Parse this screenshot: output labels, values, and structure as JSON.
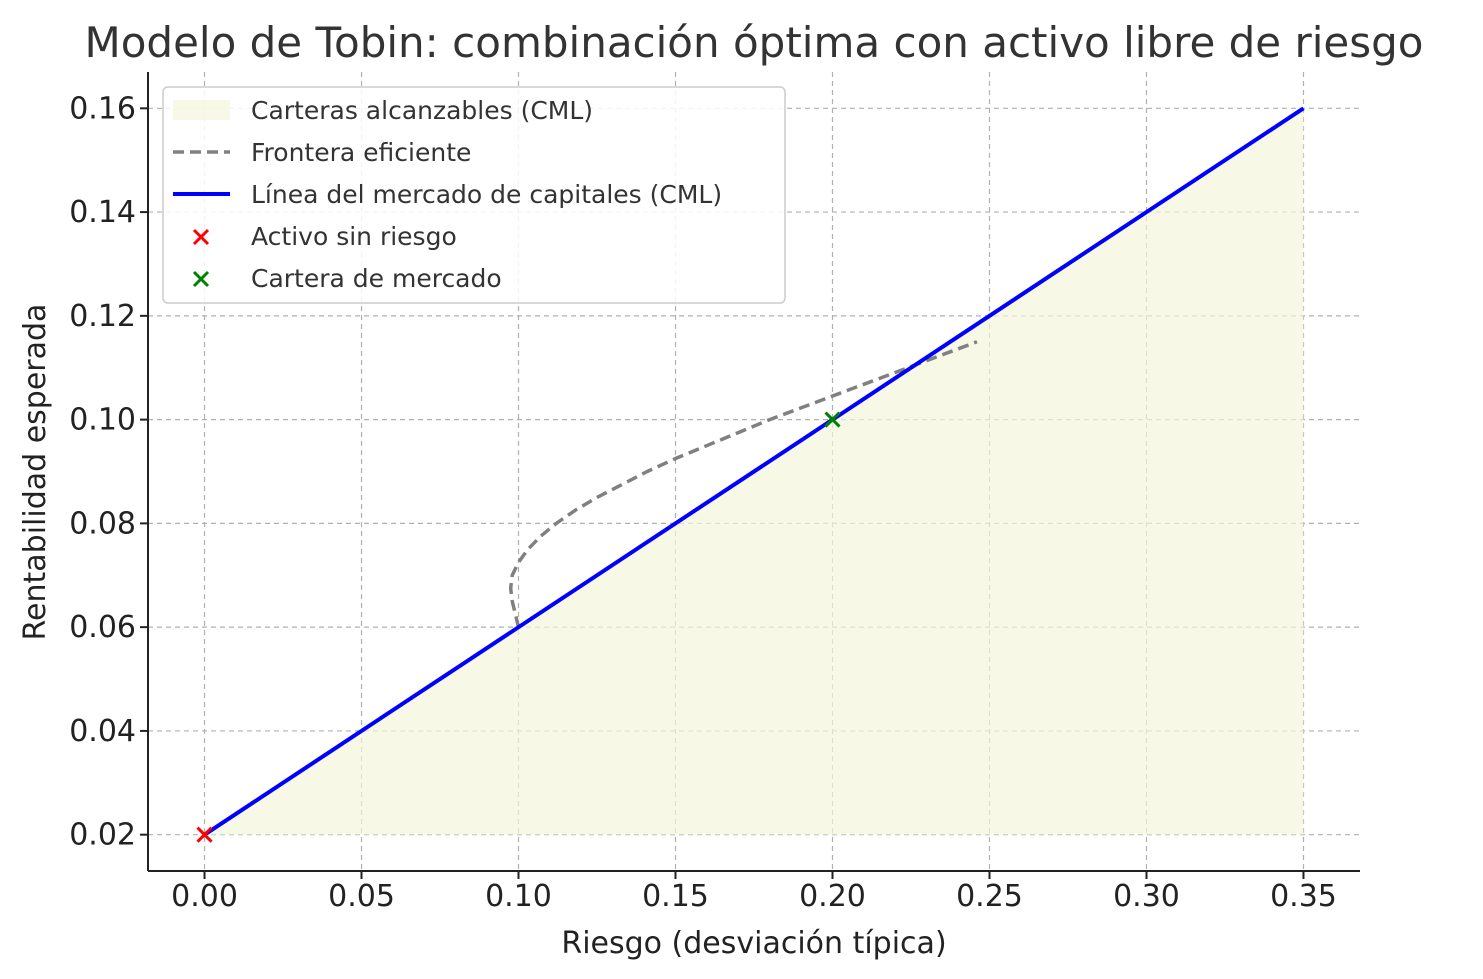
{
  "chart_data": {
    "type": "line",
    "title": "Modelo de Tobin: combinación óptima con activo libre de riesgo",
    "xlabel": "Riesgo (desviación típica)",
    "ylabel": "Rentabilidad esperada",
    "xlim": [
      -0.018,
      0.368
    ],
    "ylim": [
      0.013,
      0.167
    ],
    "xticks": [
      0.0,
      0.05,
      0.1,
      0.15,
      0.2,
      0.25,
      0.3,
      0.35
    ],
    "xtick_labels": [
      "0.00",
      "0.05",
      "0.10",
      "0.15",
      "0.20",
      "0.25",
      "0.30",
      "0.35"
    ],
    "yticks": [
      0.02,
      0.04,
      0.06,
      0.08,
      0.1,
      0.12,
      0.14,
      0.16
    ],
    "ytick_labels": [
      "0.02",
      "0.04",
      "0.06",
      "0.08",
      "0.10",
      "0.12",
      "0.14",
      "0.16"
    ],
    "grid": true,
    "legend_position": "top-left",
    "series": [
      {
        "name": "Carteras alcanzables (CML)",
        "kind": "area",
        "color": "#f5f5dc",
        "x": [
          0.0,
          0.35
        ],
        "y_upper": [
          0.02,
          0.16
        ],
        "y_lower": [
          0.02,
          0.02
        ]
      },
      {
        "name": "Frontera eficiente",
        "kind": "line",
        "style": "dashed",
        "color": "#808080",
        "x": [
          0.1,
          0.099,
          0.098,
          0.0975,
          0.098,
          0.1,
          0.103,
          0.107,
          0.112,
          0.118,
          0.125,
          0.133,
          0.141,
          0.15,
          0.16,
          0.17,
          0.18,
          0.191,
          0.202,
          0.213,
          0.224,
          0.235,
          0.246
        ],
        "y": [
          0.06,
          0.0625,
          0.065,
          0.0675,
          0.07,
          0.0725,
          0.075,
          0.0775,
          0.08,
          0.0825,
          0.085,
          0.0875,
          0.09,
          0.0925,
          0.095,
          0.0975,
          0.1,
          0.1025,
          0.105,
          0.1075,
          0.11,
          0.1125,
          0.115
        ]
      },
      {
        "name": "Línea del mercado de capitales (CML)",
        "kind": "line",
        "style": "solid",
        "color": "#0000ff",
        "x": [
          0.0,
          0.35
        ],
        "y": [
          0.02,
          0.16
        ]
      },
      {
        "name": "Activo sin riesgo",
        "kind": "scatter",
        "marker": "x",
        "color": "#ff0000",
        "x": [
          0.0
        ],
        "y": [
          0.02
        ]
      },
      {
        "name": "Cartera de mercado",
        "kind": "scatter",
        "marker": "x",
        "color": "#008000",
        "x": [
          0.2
        ],
        "y": [
          0.1
        ]
      }
    ]
  }
}
